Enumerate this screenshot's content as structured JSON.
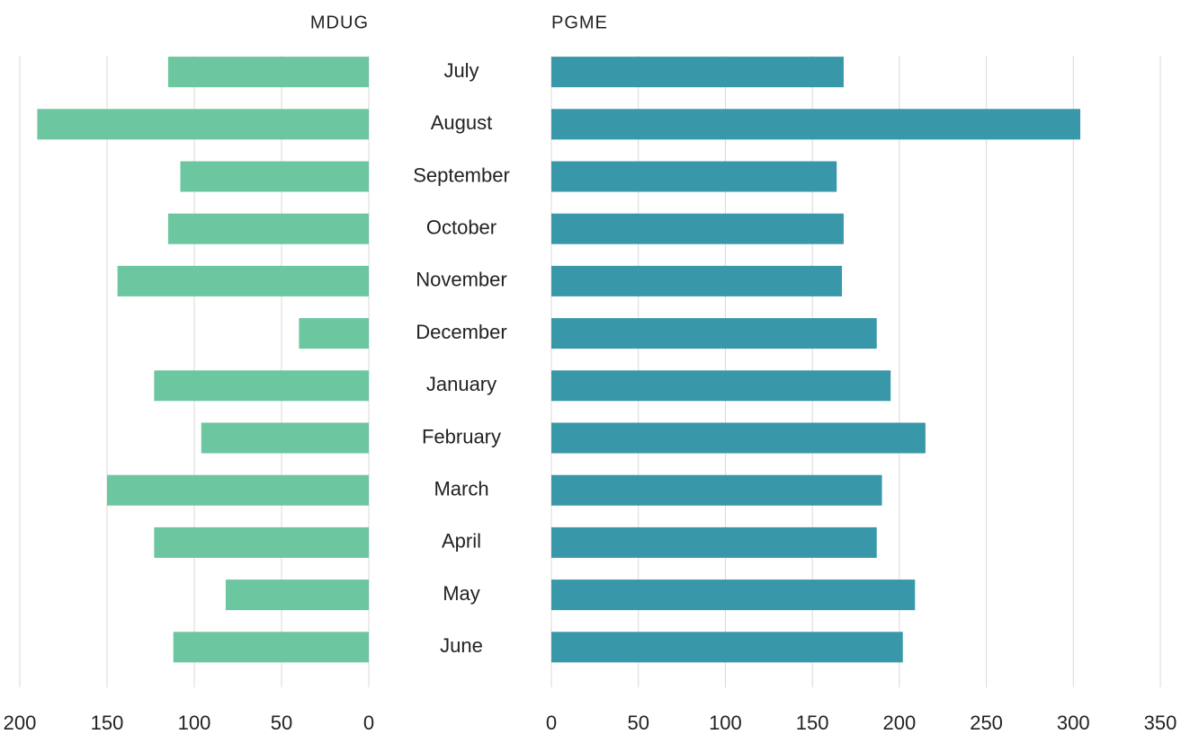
{
  "chart_data": {
    "type": "bar",
    "orientation": "horizontal",
    "grid": true,
    "categories": [
      "July",
      "August",
      "September",
      "October",
      "November",
      "December",
      "January",
      "February",
      "March",
      "April",
      "May",
      "June"
    ],
    "series": [
      {
        "name": "MDUG",
        "color": "#6cc6a0",
        "reversed": true,
        "xlim": [
          0,
          200
        ],
        "xticks": [
          0,
          50,
          100,
          150,
          200
        ],
        "values": [
          115,
          190,
          108,
          115,
          144,
          40,
          123,
          96,
          150,
          123,
          82,
          112
        ]
      },
      {
        "name": "PGME",
        "color": "#3897a8",
        "reversed": false,
        "xlim": [
          0,
          350
        ],
        "xticks": [
          0,
          50,
          100,
          150,
          200,
          250,
          300,
          350
        ],
        "values": [
          168,
          304,
          164,
          168,
          167,
          187,
          195,
          215,
          190,
          187,
          209,
          202
        ]
      }
    ]
  }
}
